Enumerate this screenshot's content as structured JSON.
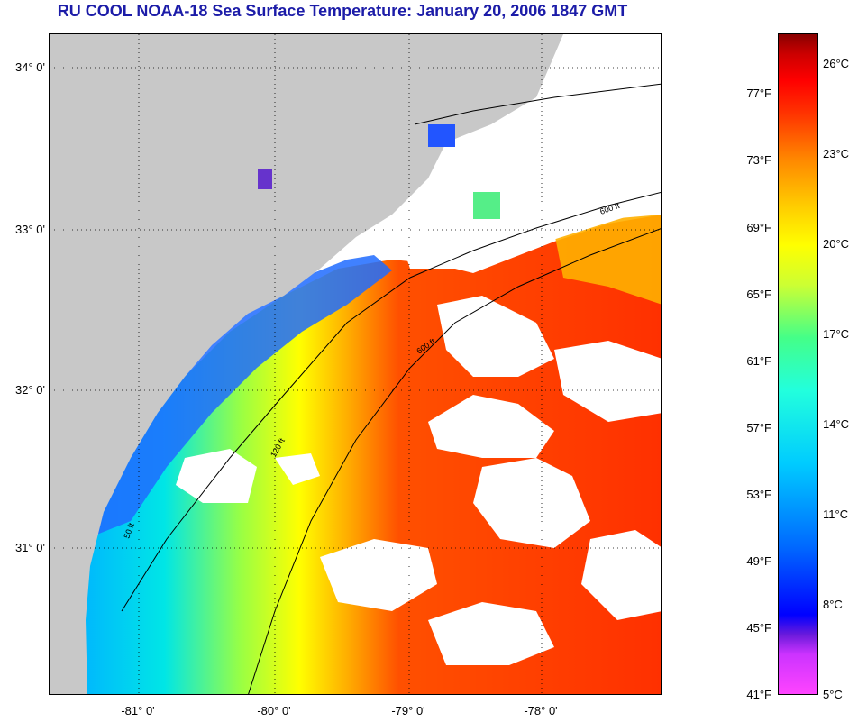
{
  "title": "RU COOL  NOAA-18  Sea Surface Temperature:  January 20, 2006 1847 GMT",
  "map": {
    "latitude_labels": [
      "34° 0'",
      "33° 0'",
      "32° 0'",
      "31° 0'"
    ],
    "longitude_labels": [
      "-81° 0'",
      "-80° 0'",
      "-79° 0'",
      "-78° 0'"
    ],
    "isobath_labels": [
      "50 ft",
      "120 ft",
      "600 ft"
    ],
    "colors": {
      "land": "#c8c8c8",
      "cloud": "#ffffff"
    }
  },
  "colorbar": {
    "fahrenheit_labels": [
      "77°F",
      "73°F",
      "69°F",
      "65°F",
      "61°F",
      "57°F",
      "53°F",
      "49°F",
      "45°F",
      "41°F"
    ],
    "celsius_labels": [
      "26°C",
      "23°C",
      "20°C",
      "17°C",
      "14°C",
      "11°C",
      "8°C",
      "5°C"
    ]
  }
}
